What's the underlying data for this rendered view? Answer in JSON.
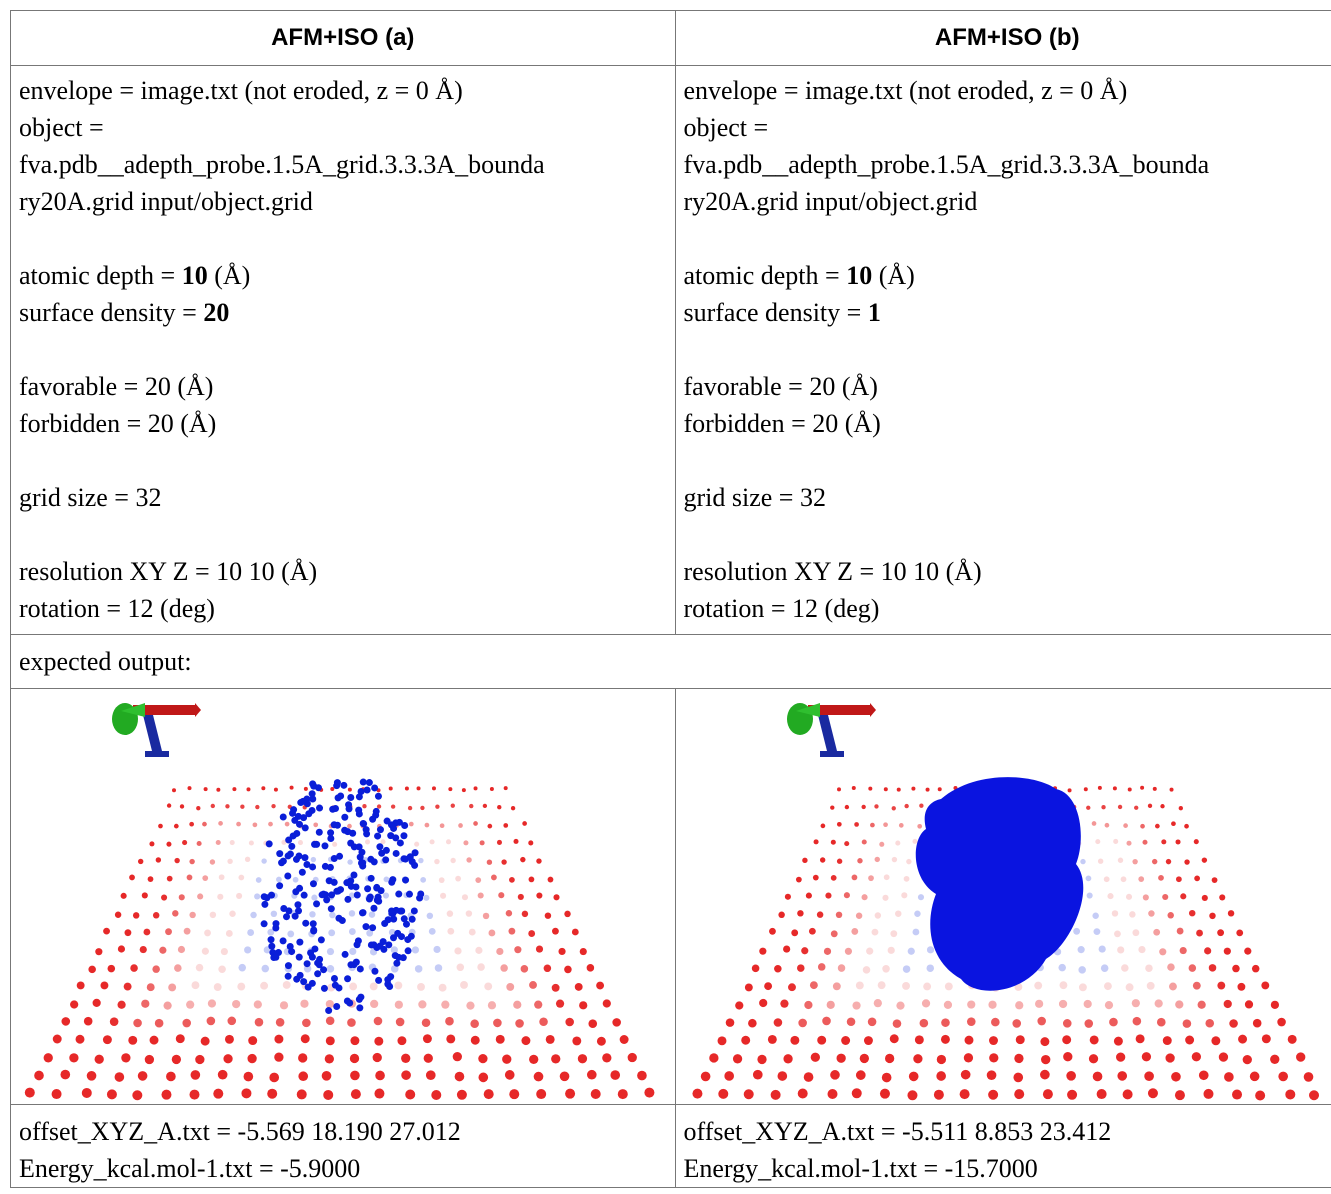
{
  "table": {
    "headers": [
      "AFM+ISO (a)",
      "AFM+ISO (b)"
    ],
    "params": [
      {
        "groups": [
          [
            "envelope = image.txt (not eroded, z = 0 Å)",
            "object =",
            "fva.pdb__adepth_probe.1.5A_grid.3.3.3A_bounda",
            "ry20A.grid input/object.grid"
          ],
          [
            [
              "atomic depth = ",
              "10",
              " (Å)"
            ],
            [
              "surface density = ",
              "20"
            ]
          ],
          [
            "favorable = 20 (Å)",
            "forbidden = 20 (Å)"
          ],
          [
            "grid size = 32"
          ],
          [
            "resolution XY Z = 10 10 (Å)",
            "rotation = 12 (deg)"
          ]
        ]
      },
      {
        "groups": [
          [
            "envelope = image.txt (not eroded, z = 0 Å)",
            "object =",
            "fva.pdb__adepth_probe.1.5A_grid.3.3.3A_bounda",
            "ry20A.grid input/object.grid"
          ],
          [
            [
              "atomic depth = ",
              "10",
              " (Å)"
            ],
            [
              "surface density = ",
              "1"
            ]
          ],
          [
            "favorable = 20 (Å)",
            "forbidden = 20 (Å)"
          ],
          [
            "grid size = 32"
          ],
          [
            "resolution XY Z = 10 10 (Å)",
            "rotation = 12 (deg)"
          ]
        ]
      }
    ],
    "expected_label": "expected output:",
    "results": [
      [
        "offset_XYZ_A.txt = -5.569 18.190 27.012",
        "Energy_kcal.mol-1.txt = -5.9000"
      ],
      [
        "offset_XYZ_A.txt = -5.511 8.853 23.412",
        "Energy_kcal.mol-1.txt = -15.7000"
      ]
    ]
  }
}
